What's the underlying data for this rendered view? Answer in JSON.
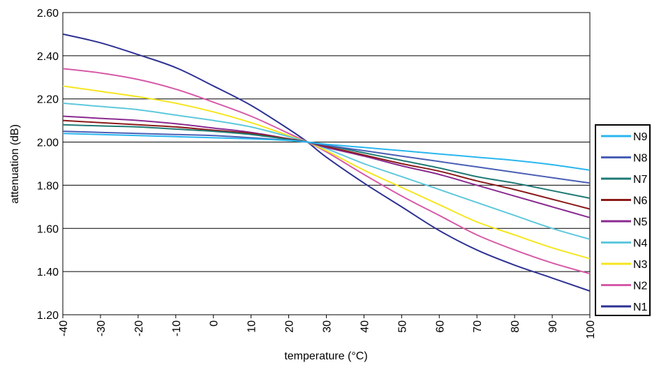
{
  "chart_data": {
    "type": "line",
    "title": "",
    "xlabel": "temperature (°C)",
    "ylabel": "attenuation (dB)",
    "xlim": [
      -40,
      100
    ],
    "ylim": [
      1.2,
      2.6
    ],
    "x_ticks": [
      "-40",
      "-30",
      "-20",
      "-10",
      "0",
      "10",
      "20",
      "30",
      "40",
      "50",
      "60",
      "70",
      "80",
      "90",
      "100"
    ],
    "y_ticks": [
      "1.20",
      "1.40",
      "1.60",
      "1.80",
      "2.00",
      "2.20",
      "2.40",
      "2.60"
    ],
    "grid": true,
    "legend_position": "right",
    "x": [
      -40,
      -30,
      -20,
      -10,
      0,
      10,
      20,
      25,
      30,
      40,
      50,
      60,
      70,
      80,
      90,
      100
    ],
    "series": [
      {
        "name": "N9",
        "color": "#29b6ef",
        "values": [
          2.04,
          2.035,
          2.03,
          2.025,
          2.02,
          2.015,
          2.007,
          2.0,
          1.99,
          1.975,
          1.96,
          1.945,
          1.93,
          1.915,
          1.895,
          1.87
        ]
      },
      {
        "name": "N8",
        "color": "#4a5fb5",
        "values": [
          2.05,
          2.045,
          2.04,
          2.035,
          2.03,
          2.02,
          2.008,
          2.0,
          1.985,
          1.96,
          1.935,
          1.91,
          1.885,
          1.86,
          1.835,
          1.81
        ]
      },
      {
        "name": "N7",
        "color": "#1f7a75",
        "values": [
          2.08,
          2.075,
          2.07,
          2.06,
          2.05,
          2.035,
          2.012,
          2.0,
          1.985,
          1.95,
          1.915,
          1.88,
          1.84,
          1.81,
          1.775,
          1.74
        ]
      },
      {
        "name": "N6",
        "color": "#8b1a1a",
        "values": [
          2.1,
          2.09,
          2.08,
          2.07,
          2.055,
          2.04,
          2.015,
          2.0,
          1.98,
          1.94,
          1.9,
          1.865,
          1.82,
          1.78,
          1.735,
          1.69
        ]
      },
      {
        "name": "N5",
        "color": "#8a2a90",
        "values": [
          2.12,
          2.11,
          2.1,
          2.085,
          2.065,
          2.045,
          2.015,
          2.0,
          1.975,
          1.935,
          1.89,
          1.85,
          1.8,
          1.75,
          1.7,
          1.65
        ]
      },
      {
        "name": "N4",
        "color": "#5ec8dc",
        "values": [
          2.18,
          2.165,
          2.15,
          2.125,
          2.1,
          2.07,
          2.025,
          2.0,
          1.97,
          1.9,
          1.84,
          1.78,
          1.72,
          1.66,
          1.6,
          1.55
        ]
      },
      {
        "name": "N3",
        "color": "#f5e61e",
        "values": [
          2.26,
          2.235,
          2.21,
          2.18,
          2.14,
          2.09,
          2.03,
          2.0,
          1.96,
          1.87,
          1.79,
          1.71,
          1.63,
          1.57,
          1.51,
          1.46
        ]
      },
      {
        "name": "N2",
        "color": "#d65aa8",
        "values": [
          2.34,
          2.32,
          2.29,
          2.245,
          2.185,
          2.12,
          2.04,
          2.0,
          1.955,
          1.85,
          1.75,
          1.66,
          1.57,
          1.5,
          1.44,
          1.39
        ]
      },
      {
        "name": "N1",
        "color": "#2e3192",
        "values": [
          2.5,
          2.46,
          2.405,
          2.345,
          2.26,
          2.17,
          2.06,
          2.0,
          1.93,
          1.81,
          1.7,
          1.59,
          1.5,
          1.43,
          1.37,
          1.31
        ]
      }
    ],
    "legend_order": [
      "N9",
      "N8",
      "N7",
      "N6",
      "N5",
      "N4",
      "N3",
      "N2",
      "N1"
    ]
  }
}
